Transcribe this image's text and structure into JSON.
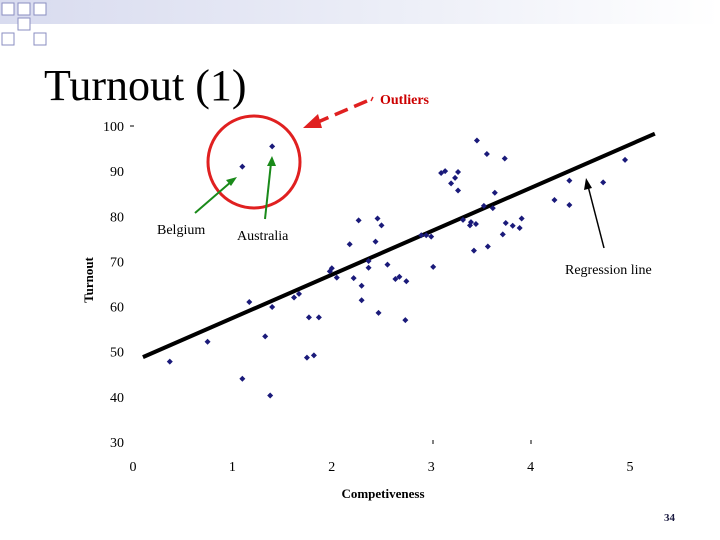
{
  "slide": {
    "title": "Turnout (1)",
    "page_number": "34"
  },
  "colors": {
    "point": "#1a1a7a",
    "regression_line": "#000000",
    "outlier_circle": "#e02020",
    "outlier_arrow": "#e02020",
    "outlier_label": "#cc0000",
    "country_arrow": "#1a8a1a",
    "header_squares": "#8a8ec0"
  },
  "chart_data": {
    "type": "scatter",
    "xlabel": "Competiveness",
    "ylabel": "Turnout",
    "xlim": [
      0,
      5
    ],
    "ylim": [
      30,
      100
    ],
    "x_ticks": [
      "0",
      "1",
      "2",
      "3",
      "4",
      "5"
    ],
    "y_ticks": [
      "30",
      "40",
      "50",
      "60",
      "70",
      "80",
      "90",
      "100"
    ],
    "grid": false,
    "points": [
      [
        0.37,
        47.8
      ],
      [
        0.75,
        52.2
      ],
      [
        1.1,
        44
      ],
      [
        1.17,
        61
      ],
      [
        1.33,
        53.4
      ],
      [
        1.38,
        40.3
      ],
      [
        1.4,
        59.9
      ],
      [
        1.1,
        91
      ],
      [
        1.4,
        95.5
      ],
      [
        1.62,
        62
      ],
      [
        1.67,
        62.8
      ],
      [
        1.77,
        57.6
      ],
      [
        1.75,
        48.7
      ],
      [
        1.82,
        49.2
      ],
      [
        1.87,
        57.6
      ],
      [
        1.98,
        67.8
      ],
      [
        2.05,
        66.4
      ],
      [
        2.18,
        73.8
      ],
      [
        2.22,
        66.3
      ],
      [
        2.27,
        79.1
      ],
      [
        2.3,
        64.6
      ],
      [
        2.3,
        61.4
      ],
      [
        2.37,
        70.1
      ],
      [
        2.37,
        68.6
      ],
      [
        2.44,
        74.4
      ],
      [
        2.46,
        79.5
      ],
      [
        2.5,
        78
      ],
      [
        2.47,
        58.6
      ],
      [
        2.56,
        69.3
      ],
      [
        2.64,
        66.1
      ],
      [
        2.68,
        66.6
      ],
      [
        2.75,
        65.6
      ],
      [
        2.74,
        57
      ],
      [
        2.9,
        75.8
      ],
      [
        2.95,
        75.8
      ],
      [
        3.02,
        68.8
      ],
      [
        3.1,
        89.6
      ],
      [
        3.14,
        90
      ],
      [
        3.2,
        87.3
      ],
      [
        3.24,
        88.5
      ],
      [
        3.27,
        85.7
      ],
      [
        3.27,
        89.8
      ],
      [
        3.32,
        79.2
      ],
      [
        3.39,
        78
      ],
      [
        3.43,
        72.4
      ],
      [
        3.4,
        78.7
      ],
      [
        3.45,
        78.3
      ],
      [
        3.46,
        96.8
      ],
      [
        3.53,
        82.3
      ],
      [
        3.57,
        73.3
      ],
      [
        3.56,
        93.8
      ],
      [
        3.64,
        85.2
      ],
      [
        3.62,
        81.8
      ],
      [
        3.72,
        76
      ],
      [
        3.74,
        92.8
      ],
      [
        3.75,
        78.5
      ],
      [
        3.82,
        77.9
      ],
      [
        3.89,
        77.4
      ],
      [
        3.91,
        79.5
      ],
      [
        4.24,
        83.6
      ],
      [
        4.39,
        82.5
      ],
      [
        4.39,
        87.9
      ],
      [
        4.73,
        87.5
      ],
      [
        4.95,
        92.5
      ],
      [
        3.0,
        75.5
      ],
      [
        2.0,
        68.5
      ]
    ],
    "regression": {
      "x": [
        0.1,
        5.25
      ],
      "y": [
        48.8,
        98.3
      ],
      "label": "Regression line"
    },
    "annotations": {
      "outliers": "Outliers",
      "belgium": "Belgium",
      "australia": "Australia"
    }
  }
}
